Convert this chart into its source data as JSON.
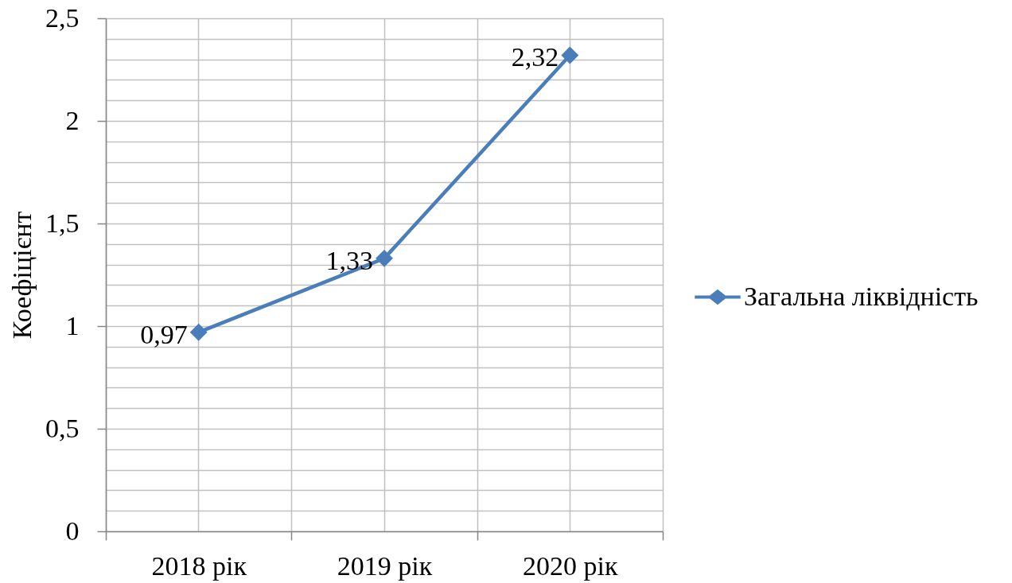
{
  "chart_data": {
    "type": "line",
    "ylabel": "Коефіцієнт",
    "categories": [
      "2018 рік",
      "2019 рік",
      "2020 рік"
    ],
    "series": [
      {
        "name": "Загальна ліквідність",
        "color": "#4a7ebb",
        "values": [
          0.97,
          1.33,
          2.32
        ],
        "value_labels": [
          "0,97",
          "1,33",
          "2,32"
        ]
      }
    ],
    "ylim": [
      0,
      2.5
    ],
    "yticks": [
      0,
      {
        "value": 0.1,
        "label": null
      },
      {
        "value": 0.2,
        "label": null
      },
      {
        "value": 0.3,
        "label": null
      },
      {
        "value": 0.4,
        "label": null
      },
      {
        "value": 0.5,
        "label": "0,5"
      },
      {
        "value": 0.6,
        "label": null
      },
      {
        "value": 0.7,
        "label": null
      },
      {
        "value": 0.8,
        "label": null
      },
      {
        "value": 0.9,
        "label": null
      },
      1,
      {
        "value": 1.1,
        "label": null
      },
      {
        "value": 1.2,
        "label": null
      },
      {
        "value": 1.3,
        "label": null
      },
      {
        "value": 1.4,
        "label": null
      },
      {
        "value": 1.5,
        "label": "1,5"
      },
      {
        "value": 1.6,
        "label": null
      },
      {
        "value": 1.7,
        "label": null
      },
      {
        "value": 1.8,
        "label": null
      },
      {
        "value": 1.9,
        "label": null
      },
      2,
      {
        "value": 2.1,
        "label": null
      },
      {
        "value": 2.2,
        "label": null
      },
      {
        "value": 2.3,
        "label": null
      },
      {
        "value": 2.4,
        "label": null
      },
      {
        "value": 2.5,
        "label": "2,5"
      }
    ],
    "grid": true,
    "legend": "right",
    "marker": "diamond",
    "line_style": "solid"
  }
}
